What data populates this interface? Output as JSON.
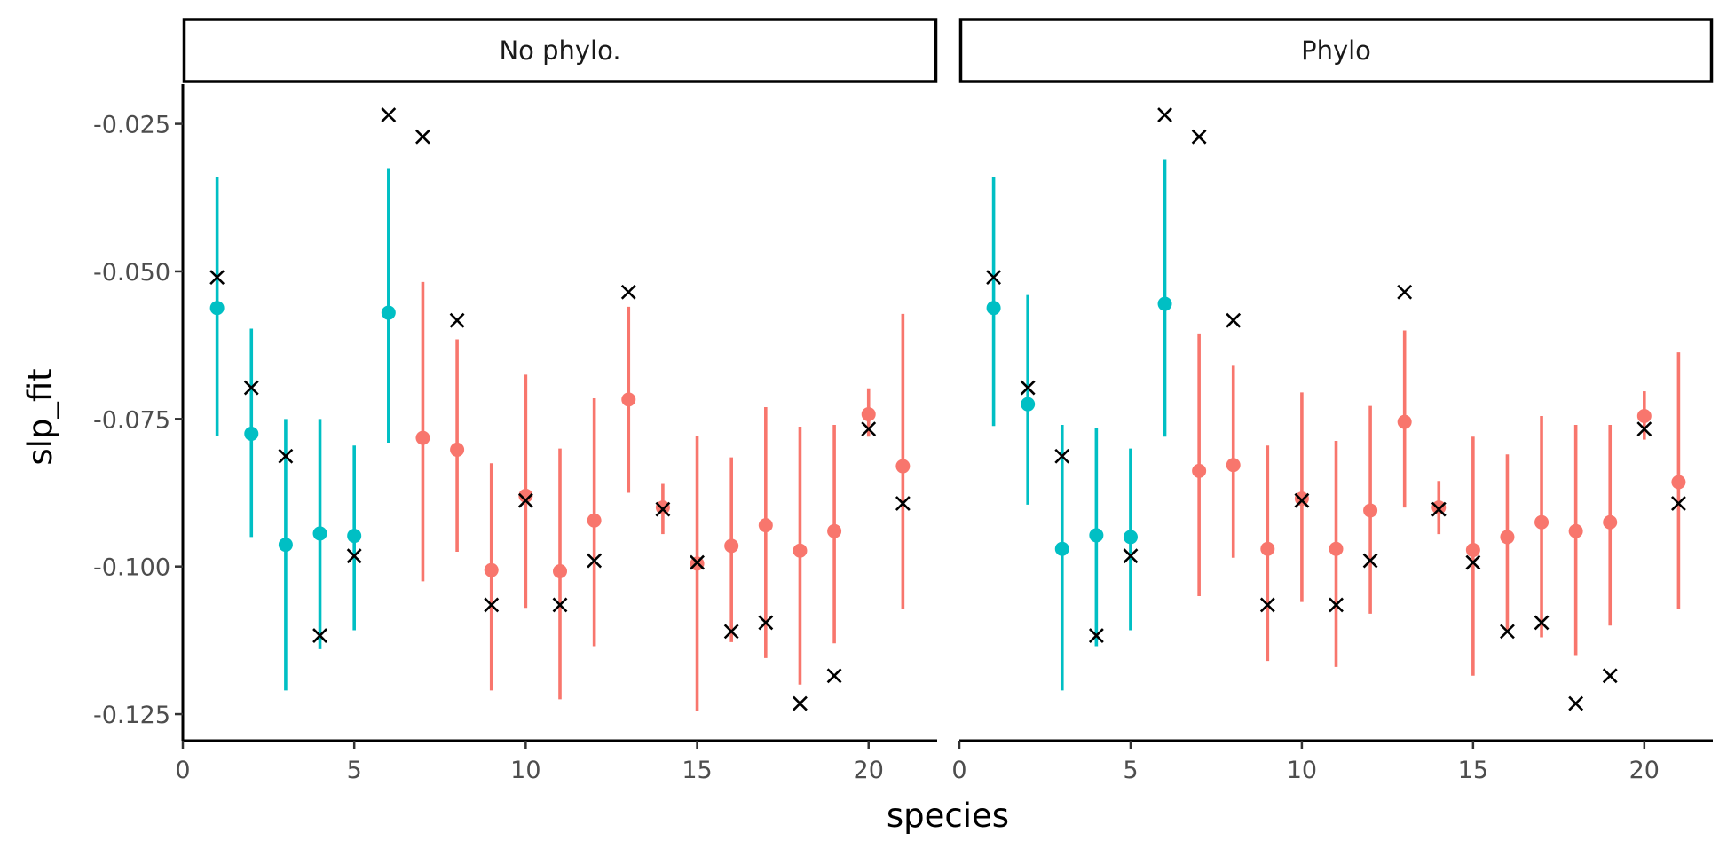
{
  "chart_data": {
    "type": "scatter",
    "xlabel": "species",
    "ylabel": "slp_fit",
    "xlim": [
      0,
      22
    ],
    "ylim": [
      -0.1295,
      -0.0183
    ],
    "x_ticks": [
      0,
      5,
      10,
      15,
      20
    ],
    "y_ticks": [
      -0.125,
      -0.1,
      -0.075,
      -0.05,
      -0.025
    ],
    "y_tick_labels": [
      "-0.125",
      "-0.100",
      "-0.075",
      "-0.050",
      "-0.025"
    ],
    "grid": false,
    "legend": "none",
    "colors": {
      "group_a": "#00BFC4",
      "group_b": "#F8766D",
      "true_marker": "#000000"
    },
    "panels": [
      {
        "title": "No phylo.",
        "points": [
          {
            "x": 1,
            "y": -0.0562,
            "lo": -0.0778,
            "hi": -0.034,
            "group": "a"
          },
          {
            "x": 2,
            "y": -0.0775,
            "lo": -0.095,
            "hi": -0.0597,
            "group": "a"
          },
          {
            "x": 3,
            "y": -0.0963,
            "lo": -0.121,
            "hi": -0.075,
            "group": "a"
          },
          {
            "x": 4,
            "y": -0.0944,
            "lo": -0.114,
            "hi": -0.075,
            "group": "a"
          },
          {
            "x": 5,
            "y": -0.0948,
            "lo": -0.1108,
            "hi": -0.0795,
            "group": "a"
          },
          {
            "x": 6,
            "y": -0.057,
            "lo": -0.079,
            "hi": -0.0325,
            "group": "a"
          },
          {
            "x": 7,
            "y": -0.0782,
            "lo": -0.1025,
            "hi": -0.0518,
            "group": "b"
          },
          {
            "x": 8,
            "y": -0.0802,
            "lo": -0.0975,
            "hi": -0.0615,
            "group": "b"
          },
          {
            "x": 9,
            "y": -0.1006,
            "lo": -0.121,
            "hi": -0.0825,
            "group": "b"
          },
          {
            "x": 10,
            "y": -0.088,
            "lo": -0.107,
            "hi": -0.0675,
            "group": "b"
          },
          {
            "x": 11,
            "y": -0.1008,
            "lo": -0.1225,
            "hi": -0.08,
            "group": "b"
          },
          {
            "x": 12,
            "y": -0.0922,
            "lo": -0.1135,
            "hi": -0.0715,
            "group": "b"
          },
          {
            "x": 13,
            "y": -0.0717,
            "lo": -0.0875,
            "hi": -0.056,
            "group": "b"
          },
          {
            "x": 14,
            "y": -0.09,
            "lo": -0.0945,
            "hi": -0.086,
            "group": "b"
          },
          {
            "x": 15,
            "y": -0.0995,
            "lo": -0.1245,
            "hi": -0.0778,
            "group": "b"
          },
          {
            "x": 16,
            "y": -0.0965,
            "lo": -0.1128,
            "hi": -0.0815,
            "group": "b"
          },
          {
            "x": 17,
            "y": -0.093,
            "lo": -0.1155,
            "hi": -0.073,
            "group": "b"
          },
          {
            "x": 18,
            "y": -0.0973,
            "lo": -0.12,
            "hi": -0.0763,
            "group": "b"
          },
          {
            "x": 19,
            "y": -0.094,
            "lo": -0.113,
            "hi": -0.076,
            "group": "b"
          },
          {
            "x": 20,
            "y": -0.0742,
            "lo": -0.078,
            "hi": -0.0698,
            "group": "b"
          },
          {
            "x": 21,
            "y": -0.083,
            "lo": -0.1072,
            "hi": -0.0572,
            "group": "b"
          }
        ],
        "true_values": [
          {
            "x": 1,
            "y": -0.051
          },
          {
            "x": 2,
            "y": -0.0697
          },
          {
            "x": 3,
            "y": -0.0813
          },
          {
            "x": 4,
            "y": -0.1117
          },
          {
            "x": 5,
            "y": -0.0982
          },
          {
            "x": 6,
            "y": -0.0235
          },
          {
            "x": 7,
            "y": -0.0272
          },
          {
            "x": 8,
            "y": -0.0583
          },
          {
            "x": 9,
            "y": -0.1065
          },
          {
            "x": 10,
            "y": -0.0888
          },
          {
            "x": 11,
            "y": -0.1065
          },
          {
            "x": 12,
            "y": -0.099
          },
          {
            "x": 13,
            "y": -0.0535
          },
          {
            "x": 14,
            "y": -0.0903
          },
          {
            "x": 15,
            "y": -0.0993
          },
          {
            "x": 16,
            "y": -0.111
          },
          {
            "x": 17,
            "y": -0.1095
          },
          {
            "x": 18,
            "y": -0.1232
          },
          {
            "x": 19,
            "y": -0.1185
          },
          {
            "x": 20,
            "y": -0.0767
          },
          {
            "x": 21,
            "y": -0.0893
          }
        ]
      },
      {
        "title": "Phylo",
        "points": [
          {
            "x": 1,
            "y": -0.0562,
            "lo": -0.0762,
            "hi": -0.034,
            "group": "a"
          },
          {
            "x": 2,
            "y": -0.0725,
            "lo": -0.0895,
            "hi": -0.054,
            "group": "a"
          },
          {
            "x": 3,
            "y": -0.097,
            "lo": -0.121,
            "hi": -0.076,
            "group": "a"
          },
          {
            "x": 4,
            "y": -0.0947,
            "lo": -0.1135,
            "hi": -0.0765,
            "group": "a"
          },
          {
            "x": 5,
            "y": -0.095,
            "lo": -0.1108,
            "hi": -0.08,
            "group": "a"
          },
          {
            "x": 6,
            "y": -0.0555,
            "lo": -0.078,
            "hi": -0.031,
            "group": "a"
          },
          {
            "x": 7,
            "y": -0.0838,
            "lo": -0.105,
            "hi": -0.0605,
            "group": "b"
          },
          {
            "x": 8,
            "y": -0.0828,
            "lo": -0.0985,
            "hi": -0.066,
            "group": "b"
          },
          {
            "x": 9,
            "y": -0.097,
            "lo": -0.116,
            "hi": -0.0795,
            "group": "b"
          },
          {
            "x": 10,
            "y": -0.0885,
            "lo": -0.106,
            "hi": -0.0705,
            "group": "b"
          },
          {
            "x": 11,
            "y": -0.097,
            "lo": -0.117,
            "hi": -0.0787,
            "group": "b"
          },
          {
            "x": 12,
            "y": -0.0905,
            "lo": -0.108,
            "hi": -0.0728,
            "group": "b"
          },
          {
            "x": 13,
            "y": -0.0755,
            "lo": -0.09,
            "hi": -0.06,
            "group": "b"
          },
          {
            "x": 14,
            "y": -0.09,
            "lo": -0.0945,
            "hi": -0.0855,
            "group": "b"
          },
          {
            "x": 15,
            "y": -0.0972,
            "lo": -0.1185,
            "hi": -0.078,
            "group": "b"
          },
          {
            "x": 16,
            "y": -0.095,
            "lo": -0.111,
            "hi": -0.081,
            "group": "b"
          },
          {
            "x": 17,
            "y": -0.0925,
            "lo": -0.112,
            "hi": -0.0745,
            "group": "b"
          },
          {
            "x": 18,
            "y": -0.094,
            "lo": -0.115,
            "hi": -0.076,
            "group": "b"
          },
          {
            "x": 19,
            "y": -0.0925,
            "lo": -0.11,
            "hi": -0.076,
            "group": "b"
          },
          {
            "x": 20,
            "y": -0.0745,
            "lo": -0.0785,
            "hi": -0.0703,
            "group": "b"
          },
          {
            "x": 21,
            "y": -0.0857,
            "lo": -0.1072,
            "hi": -0.0637,
            "group": "b"
          }
        ],
        "true_values": [
          {
            "x": 1,
            "y": -0.051
          },
          {
            "x": 2,
            "y": -0.0697
          },
          {
            "x": 3,
            "y": -0.0813
          },
          {
            "x": 4,
            "y": -0.1117
          },
          {
            "x": 5,
            "y": -0.0982
          },
          {
            "x": 6,
            "y": -0.0235
          },
          {
            "x": 7,
            "y": -0.0272
          },
          {
            "x": 8,
            "y": -0.0583
          },
          {
            "x": 9,
            "y": -0.1065
          },
          {
            "x": 10,
            "y": -0.0888
          },
          {
            "x": 11,
            "y": -0.1065
          },
          {
            "x": 12,
            "y": -0.099
          },
          {
            "x": 13,
            "y": -0.0535
          },
          {
            "x": 14,
            "y": -0.0903
          },
          {
            "x": 15,
            "y": -0.0993
          },
          {
            "x": 16,
            "y": -0.111
          },
          {
            "x": 17,
            "y": -0.1095
          },
          {
            "x": 18,
            "y": -0.1232
          },
          {
            "x": 19,
            "y": -0.1185
          },
          {
            "x": 20,
            "y": -0.0767
          },
          {
            "x": 21,
            "y": -0.0893
          }
        ]
      }
    ]
  }
}
